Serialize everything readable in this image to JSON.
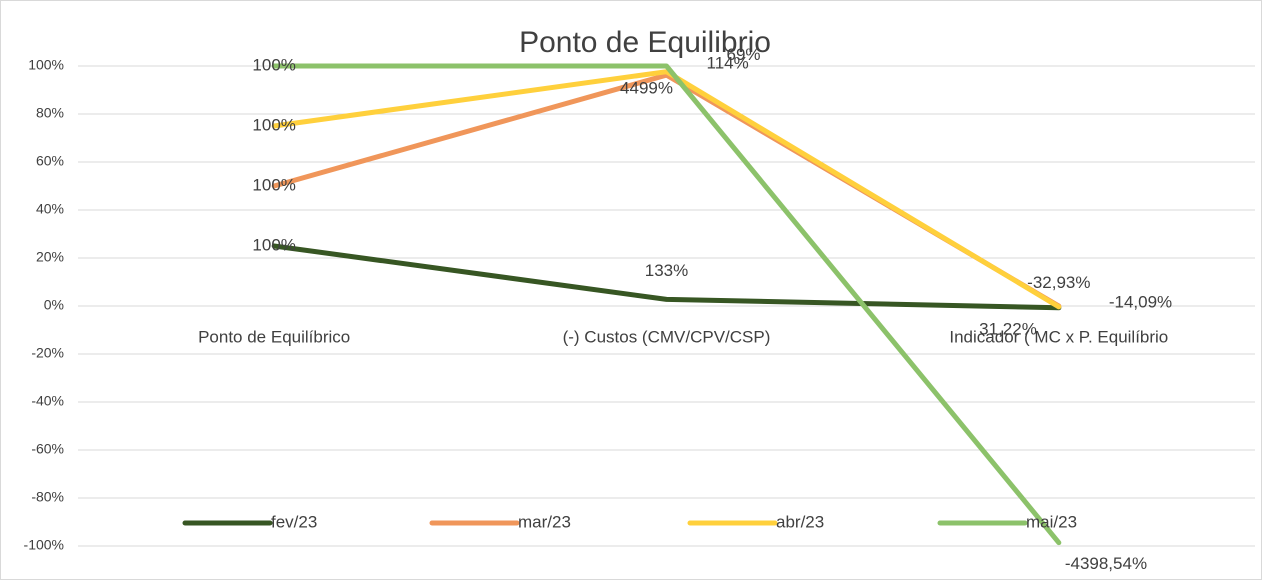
{
  "chart_data": {
    "type": "line",
    "stacking": "percent",
    "title": "Ponto de Equilibrio",
    "categories": [
      "Ponto de Equilíbrico",
      "(-) Custos (CMV/CPV/CSP)",
      "Indicador ( MC x P. Equilíbrio"
    ],
    "series": [
      {
        "name": "fev/23",
        "color": "#375623",
        "values": [
          100,
          133,
          -32.93
        ],
        "value_labels": [
          "100%",
          "133%",
          "-32,93%"
        ]
      },
      {
        "name": "mar/23",
        "color": "#f0965a",
        "values": [
          100,
          4499,
          31.22
        ],
        "value_labels": [
          "100%",
          "4499%",
          "31,22%"
        ]
      },
      {
        "name": "abr/23",
        "color": "#ffd03c",
        "values": [
          100,
          69,
          -14.09
        ],
        "value_labels": [
          "100%",
          "69%",
          "-14,09%"
        ]
      },
      {
        "name": "mai/23",
        "color": "#8cc26a",
        "values": [
          100,
          114,
          -4398.54
        ],
        "value_labels": [
          "100%",
          "114%",
          "-4398,54%"
        ]
      }
    ],
    "ylim": [
      -100,
      100
    ],
    "yticks": [
      {
        "value": -100,
        "label": "-100%"
      },
      {
        "value": -80,
        "label": "-80%"
      },
      {
        "value": -60,
        "label": "-60%"
      },
      {
        "value": -40,
        "label": "-40%"
      },
      {
        "value": -20,
        "label": "-20%"
      },
      {
        "value": 0,
        "label": "0%"
      },
      {
        "value": 20,
        "label": "20%"
      },
      {
        "value": 40,
        "label": "40%"
      },
      {
        "value": 60,
        "label": "60%"
      },
      {
        "value": 80,
        "label": "80%"
      },
      {
        "value": 100,
        "label": "100%"
      }
    ],
    "grid": true,
    "legend": "bottom"
  }
}
